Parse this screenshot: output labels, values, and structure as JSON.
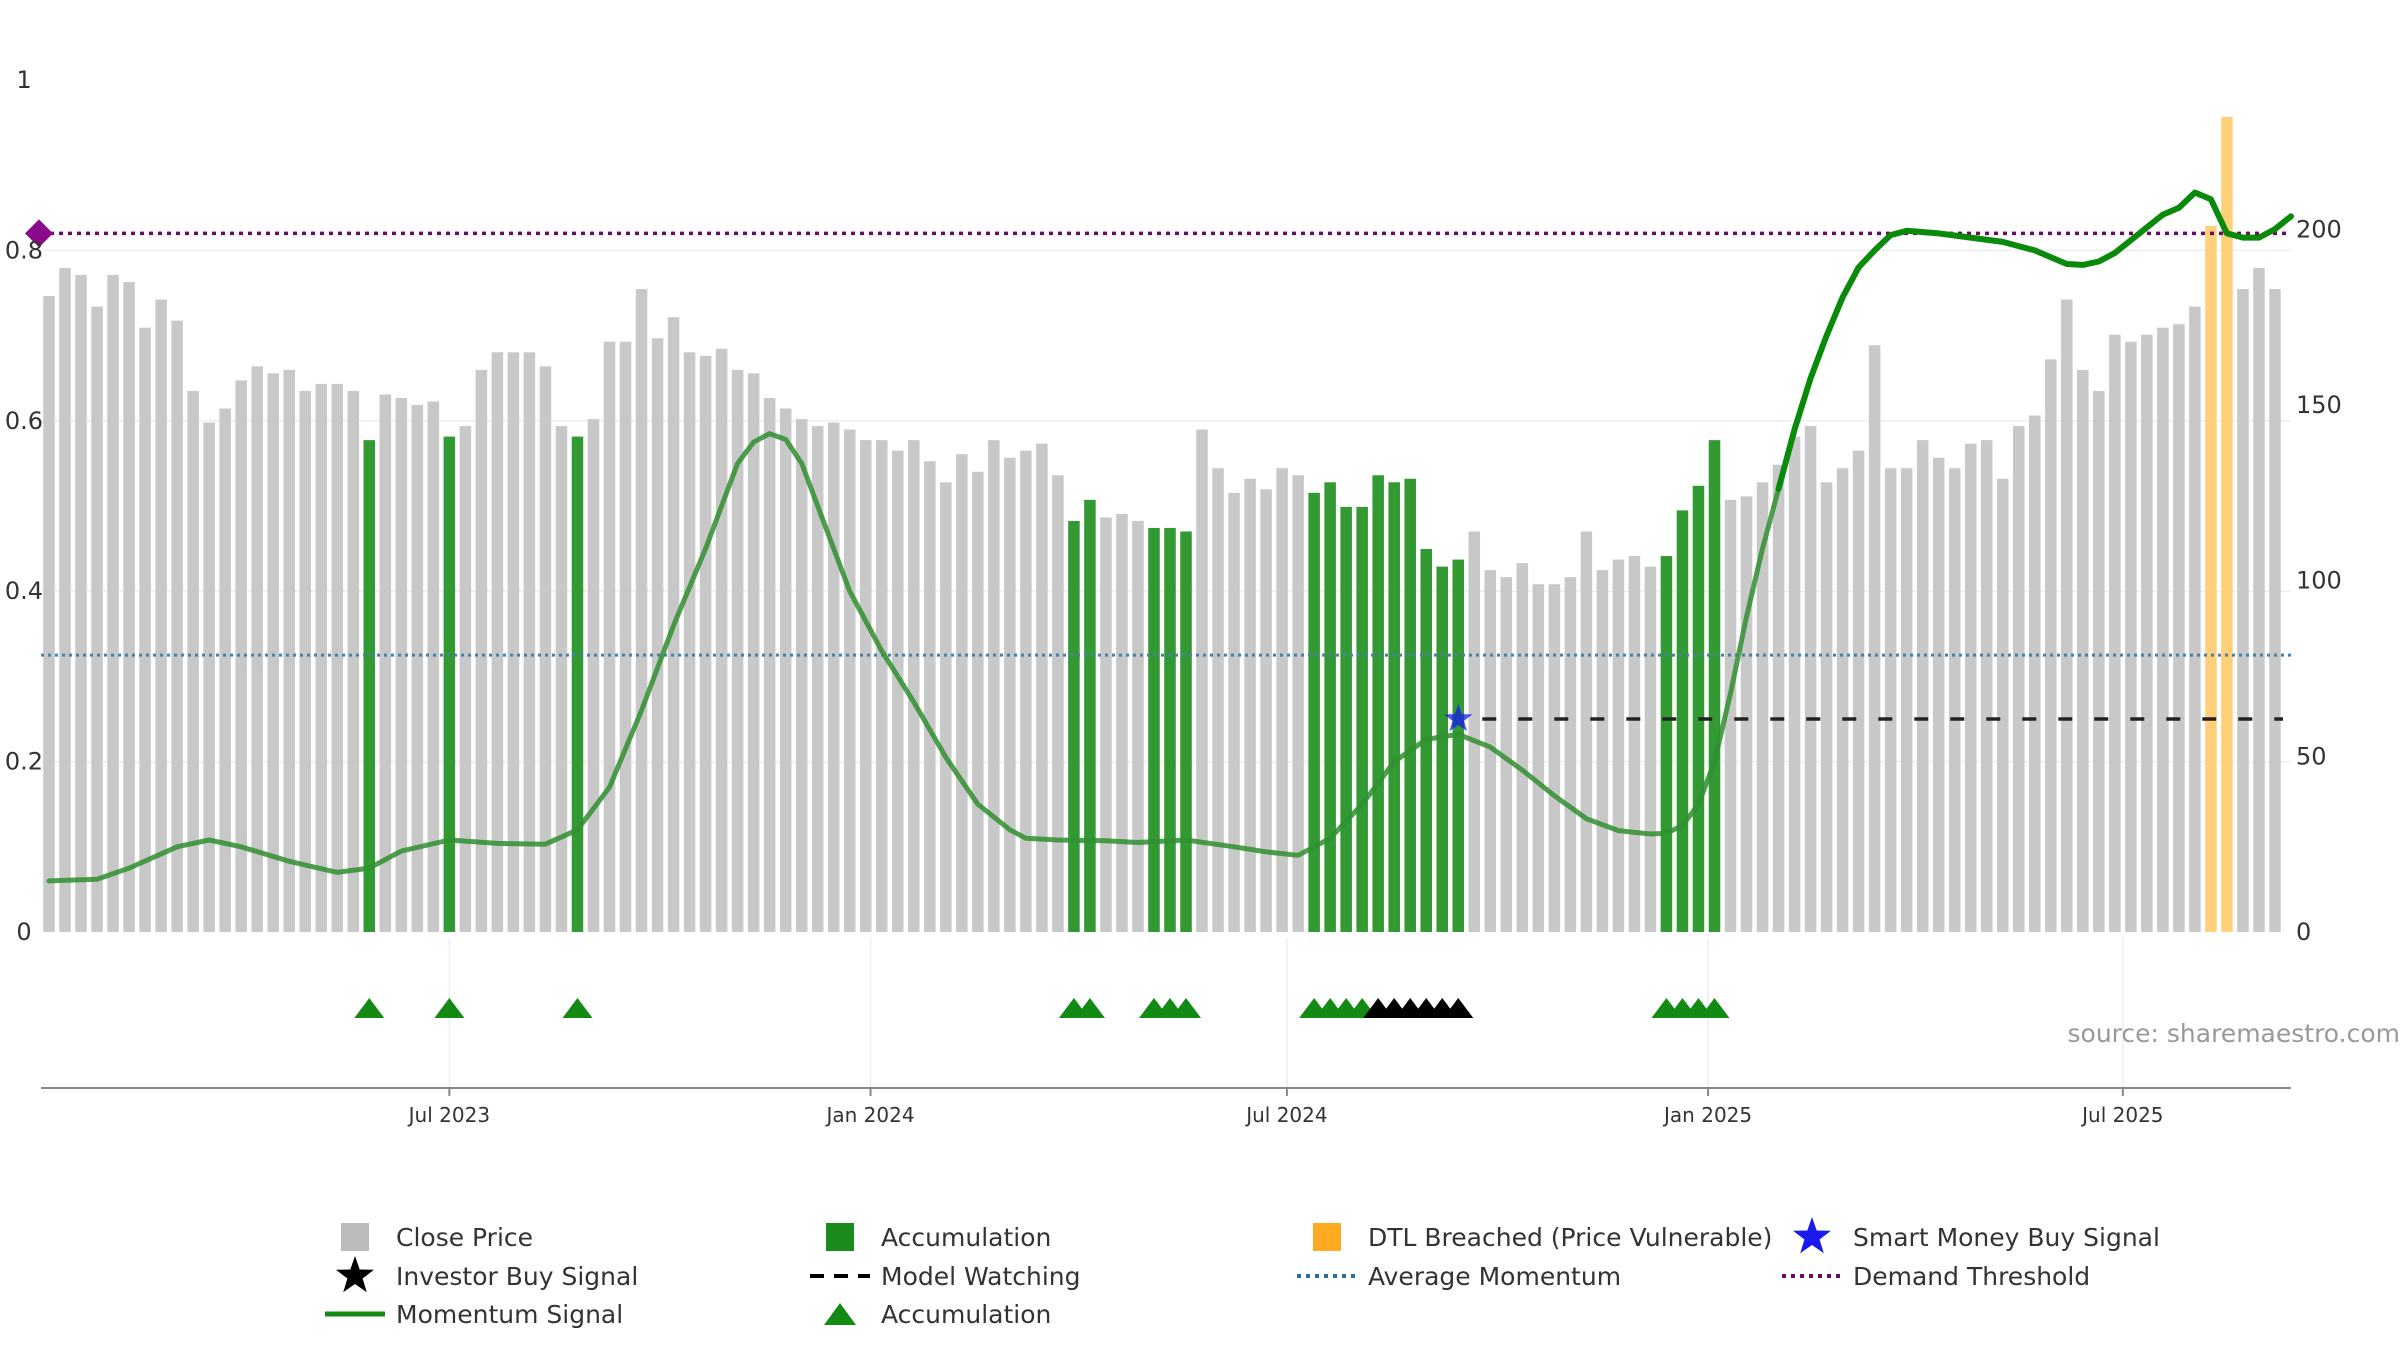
{
  "source_text": "source: sharemaestro.com",
  "colors": {
    "close": "#c8c8c8",
    "accumulation": "#339933",
    "dtl": "#ffd07a",
    "momentum": "#2f8f2f",
    "momentum_recent": "#0a8a0a",
    "avg_momentum": "#4a7fa7",
    "demand": "#6a0a6a",
    "watching": "#222222",
    "triangle_green": "#138a13",
    "triangle_black": "#000000",
    "star": "#1a1aee"
  },
  "chart_data": {
    "type": "bar",
    "left_axis": {
      "ylim": [
        0,
        1
      ],
      "ticks": [
        "0",
        "0.2",
        "0.4",
        "0.6",
        "0.8",
        "1"
      ]
    },
    "right_axis": {
      "ylim": [
        0,
        242.5
      ],
      "ticks": [
        "0",
        "50",
        "100",
        "150",
        "200"
      ]
    },
    "x_ticks": [
      {
        "label": "Jul 2023",
        "week": 25
      },
      {
        "label": "Jan 2024",
        "week": 51.3
      },
      {
        "label": "Jul 2024",
        "week": 77.3
      },
      {
        "label": "Jan 2025",
        "week": 103.6
      },
      {
        "label": "Jul 2025",
        "week": 129.5
      }
    ],
    "x_range": [
      -0.5,
      140
    ],
    "close_prices": [
      181,
      189,
      187,
      178,
      187,
      185,
      172,
      180,
      174,
      154,
      145,
      149,
      157,
      161,
      159,
      160,
      154,
      156,
      156,
      154,
      140,
      153,
      152,
      150,
      151,
      141,
      144,
      160,
      165,
      165,
      165,
      161,
      144,
      141,
      146,
      168,
      168,
      183,
      169,
      175,
      165,
      164,
      166,
      160,
      159,
      152,
      149,
      146,
      144,
      145,
      143,
      140,
      140,
      137,
      140,
      134,
      128,
      136,
      131,
      140,
      135,
      137,
      139,
      130,
      117,
      123,
      118,
      119,
      117,
      115,
      115,
      114,
      143,
      132,
      125,
      129,
      126,
      132,
      130,
      125,
      128,
      121,
      121,
      130,
      128,
      129,
      109,
      104,
      106,
      114,
      103,
      101,
      105,
      99,
      99,
      101,
      114,
      103,
      106,
      107,
      104,
      107,
      120,
      127,
      140,
      123,
      124,
      128,
      133,
      141,
      144,
      128,
      132,
      137,
      167,
      132,
      132,
      140,
      135,
      132,
      139,
      140,
      129,
      144,
      147,
      163,
      180,
      160,
      154,
      170,
      168,
      170,
      172,
      173,
      178,
      201,
      232,
      183,
      189,
      183
    ],
    "bar_types": [
      "C",
      "C",
      "C",
      "C",
      "C",
      "C",
      "C",
      "C",
      "C",
      "C",
      "C",
      "C",
      "C",
      "C",
      "C",
      "C",
      "C",
      "C",
      "C",
      "C",
      "A",
      "C",
      "C",
      "C",
      "C",
      "A",
      "C",
      "C",
      "C",
      "C",
      "C",
      "C",
      "C",
      "A",
      "C",
      "C",
      "C",
      "C",
      "C",
      "C",
      "C",
      "C",
      "C",
      "C",
      "C",
      "C",
      "C",
      "C",
      "C",
      "C",
      "C",
      "C",
      "C",
      "C",
      "C",
      "C",
      "C",
      "C",
      "C",
      "C",
      "C",
      "C",
      "C",
      "C",
      "A",
      "A",
      "C",
      "C",
      "C",
      "A",
      "A",
      "A",
      "C",
      "C",
      "C",
      "C",
      "C",
      "C",
      "C",
      "A",
      "A",
      "A",
      "A",
      "A",
      "A",
      "A",
      "A",
      "A",
      "A",
      "C",
      "C",
      "C",
      "C",
      "C",
      "C",
      "C",
      "C",
      "C",
      "C",
      "C",
      "C",
      "A",
      "A",
      "A",
      "A",
      "C",
      "C",
      "C",
      "C",
      "C",
      "C",
      "C",
      "C",
      "C",
      "C",
      "C",
      "C",
      "C",
      "C",
      "C",
      "C",
      "C",
      "C",
      "C",
      "C",
      "C",
      "C",
      "C",
      "C",
      "C",
      "C",
      "C",
      "C",
      "C",
      "C",
      "D",
      "D",
      "C",
      "C",
      "C"
    ],
    "momentum": [
      [
        0,
        0.06
      ],
      [
        3,
        0.062
      ],
      [
        5,
        0.075
      ],
      [
        8,
        0.1
      ],
      [
        10,
        0.108
      ],
      [
        12,
        0.1
      ],
      [
        15,
        0.083
      ],
      [
        18,
        0.07
      ],
      [
        20,
        0.075
      ],
      [
        22,
        0.095
      ],
      [
        25,
        0.108
      ],
      [
        28,
        0.104
      ],
      [
        31,
        0.103
      ],
      [
        33,
        0.12
      ],
      [
        35,
        0.17
      ],
      [
        37,
        0.26
      ],
      [
        39,
        0.36
      ],
      [
        41,
        0.45
      ],
      [
        42,
        0.5
      ],
      [
        43,
        0.55
      ],
      [
        44,
        0.575
      ],
      [
        45,
        0.585
      ],
      [
        46,
        0.578
      ],
      [
        47,
        0.55
      ],
      [
        48,
        0.5
      ],
      [
        49,
        0.45
      ],
      [
        50,
        0.4
      ],
      [
        52,
        0.33
      ],
      [
        54,
        0.27
      ],
      [
        56,
        0.205
      ],
      [
        58,
        0.15
      ],
      [
        60,
        0.12
      ],
      [
        61,
        0.11
      ],
      [
        63,
        0.108
      ],
      [
        66,
        0.107
      ],
      [
        68,
        0.105
      ],
      [
        71,
        0.108
      ],
      [
        74,
        0.1
      ],
      [
        76,
        0.094
      ],
      [
        78,
        0.09
      ],
      [
        80,
        0.11
      ],
      [
        82,
        0.15
      ],
      [
        84,
        0.2
      ],
      [
        86,
        0.226
      ],
      [
        88,
        0.232
      ],
      [
        90,
        0.217
      ],
      [
        92,
        0.19
      ],
      [
        94,
        0.16
      ],
      [
        96,
        0.133
      ],
      [
        98,
        0.119
      ],
      [
        100,
        0.115
      ],
      [
        101,
        0.116
      ],
      [
        102,
        0.125
      ],
      [
        103,
        0.15
      ],
      [
        104,
        0.2
      ],
      [
        105,
        0.28
      ],
      [
        106,
        0.37
      ],
      [
        107,
        0.45
      ],
      [
        108,
        0.52
      ]
    ],
    "momentum_recent": [
      [
        108,
        0.52
      ],
      [
        109,
        0.59
      ],
      [
        110,
        0.65
      ],
      [
        111,
        0.7
      ],
      [
        112,
        0.745
      ],
      [
        113,
        0.78
      ],
      [
        114,
        0.8
      ],
      [
        115,
        0.818
      ],
      [
        116,
        0.823
      ],
      [
        118,
        0.82
      ],
      [
        120,
        0.815
      ],
      [
        122,
        0.81
      ],
      [
        124,
        0.8
      ],
      [
        125,
        0.792
      ],
      [
        126,
        0.784
      ],
      [
        127,
        0.783
      ],
      [
        128,
        0.787
      ],
      [
        129,
        0.797
      ],
      [
        130,
        0.812
      ],
      [
        131,
        0.827
      ],
      [
        132,
        0.842
      ],
      [
        133,
        0.85
      ],
      [
        134,
        0.868
      ],
      [
        135,
        0.86
      ],
      [
        136,
        0.82
      ],
      [
        137,
        0.815
      ],
      [
        138,
        0.815
      ],
      [
        139,
        0.825
      ],
      [
        140,
        0.84
      ]
    ],
    "avg_momentum": 0.325,
    "demand_threshold": 0.82,
    "model_watching": {
      "y": 0.25,
      "x_start": 89.5,
      "x_end": 139.5
    },
    "smart_money_signal": {
      "x": 88,
      "y": 0.25
    },
    "accumulation_markers": [
      20,
      25,
      33,
      64,
      65,
      69,
      70,
      71,
      79,
      80,
      81,
      82,
      101,
      102,
      103,
      104
    ],
    "investor_markers": [
      83,
      84,
      85,
      86,
      87,
      88
    ],
    "legend": [
      {
        "label": "Close Price",
        "symbol": "square",
        "color": "#bbbbbb"
      },
      {
        "label": "Accumulation",
        "symbol": "square",
        "color": "#1a8a1a"
      },
      {
        "label": "DTL Breached (Price Vulnerable)",
        "symbol": "square",
        "color": "#ffaa22"
      },
      {
        "label": "Smart Money Buy Signal",
        "symbol": "star",
        "color": "#1a1aee"
      },
      {
        "label": "Investor Buy Signal",
        "symbol": "star",
        "color": "#000000"
      },
      {
        "label": "Model Watching",
        "symbol": "dash",
        "color": "#000000"
      },
      {
        "label": "Average Momentum",
        "symbol": "dot",
        "color": "#2a6fa0"
      },
      {
        "label": "Demand Threshold",
        "symbol": "dot",
        "color": "#6a0a6a"
      },
      {
        "label": "Momentum Signal",
        "symbol": "line",
        "color": "#138a13"
      },
      {
        "label": "Accumulation",
        "symbol": "triangle",
        "color": "#138a13"
      }
    ]
  }
}
